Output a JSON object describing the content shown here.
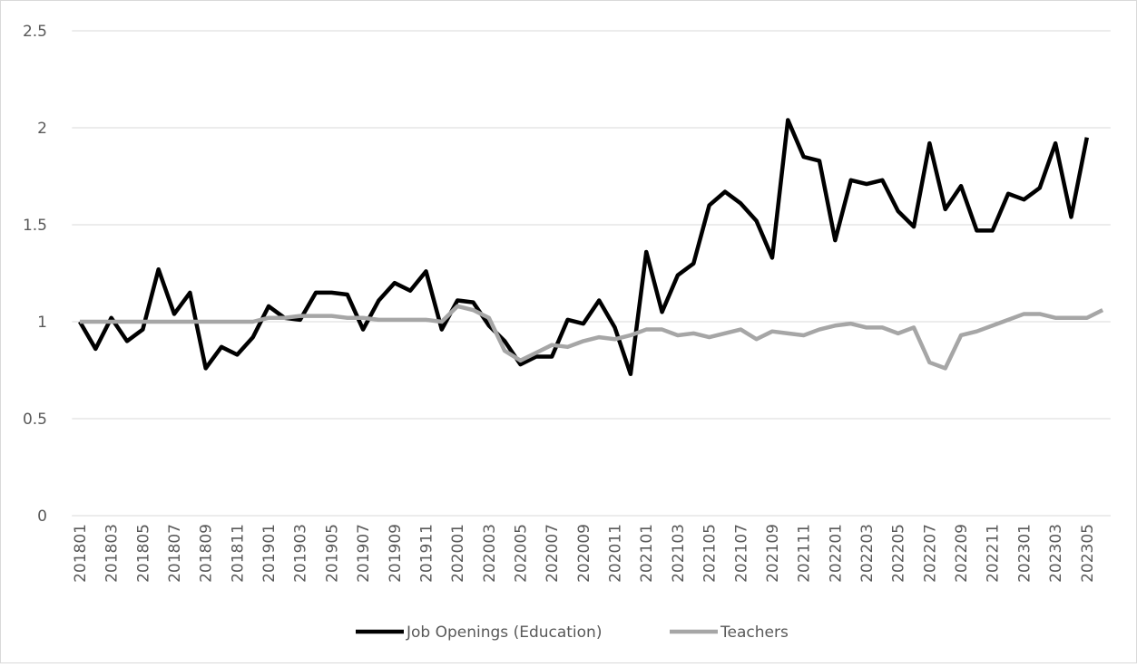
{
  "chart_data": {
    "type": "line",
    "categories": [
      "201801",
      null,
      "201803",
      null,
      "201805",
      null,
      "201807",
      null,
      "201809",
      null,
      "201811",
      null,
      "201901",
      null,
      "201903",
      null,
      "201905",
      null,
      "201907",
      null,
      "201909",
      null,
      "201911",
      null,
      "202001",
      null,
      "202003",
      null,
      "202005",
      null,
      "202007",
      null,
      "202009",
      null,
      "202011",
      null,
      "202101",
      null,
      "202103",
      null,
      "202105",
      null,
      "202107",
      null,
      "202109",
      null,
      "202111",
      null,
      "202201",
      null,
      "202203",
      null,
      "202205",
      null,
      "202207",
      null,
      "202209",
      null,
      "202211",
      null,
      "202301",
      null,
      "202303",
      null,
      "202305",
      null
    ],
    "series": [
      {
        "name": "Job Openings (Education)",
        "color": "#000000",
        "values": [
          1.0,
          0.86,
          1.02,
          0.9,
          0.96,
          1.27,
          1.04,
          1.15,
          0.76,
          0.87,
          0.83,
          0.92,
          1.08,
          1.02,
          1.01,
          1.15,
          1.15,
          1.14,
          0.96,
          1.11,
          1.2,
          1.16,
          1.26,
          0.96,
          1.11,
          1.1,
          0.98,
          0.9,
          0.78,
          0.82,
          0.82,
          1.01,
          0.99,
          1.11,
          0.97,
          0.73,
          1.36,
          1.05,
          1.24,
          1.3,
          1.6,
          1.67,
          1.61,
          1.52,
          1.33,
          2.04,
          1.85,
          1.83,
          1.42,
          1.73,
          1.71,
          1.73,
          1.57,
          1.49,
          1.92,
          1.58,
          1.7,
          1.47,
          1.47,
          1.66,
          1.63,
          1.69,
          1.92,
          1.54,
          1.95,
          null
        ]
      },
      {
        "name": "Teachers",
        "color": "#a6a6a6",
        "values": [
          1.0,
          1.0,
          1.0,
          1.0,
          1.0,
          1.0,
          1.0,
          1.0,
          1.0,
          1.0,
          1.0,
          1.0,
          1.02,
          1.02,
          1.03,
          1.03,
          1.03,
          1.02,
          1.02,
          1.01,
          1.01,
          1.01,
          1.01,
          1.0,
          1.08,
          1.06,
          1.02,
          0.85,
          0.8,
          0.84,
          0.88,
          0.87,
          0.9,
          0.92,
          0.91,
          0.93,
          0.96,
          0.96,
          0.93,
          0.94,
          0.92,
          0.94,
          0.96,
          0.91,
          0.95,
          0.94,
          0.93,
          0.96,
          0.98,
          0.99,
          0.97,
          0.97,
          0.94,
          0.97,
          0.79,
          0.76,
          0.93,
          0.95,
          0.98,
          1.01,
          1.04,
          1.04,
          1.02,
          1.02,
          1.02,
          1.06
        ]
      }
    ],
    "ylim": [
      0,
      2.5
    ],
    "yticks": [
      0,
      0.5,
      1,
      1.5,
      2,
      2.5
    ],
    "grid": true,
    "legend": "bottom"
  }
}
